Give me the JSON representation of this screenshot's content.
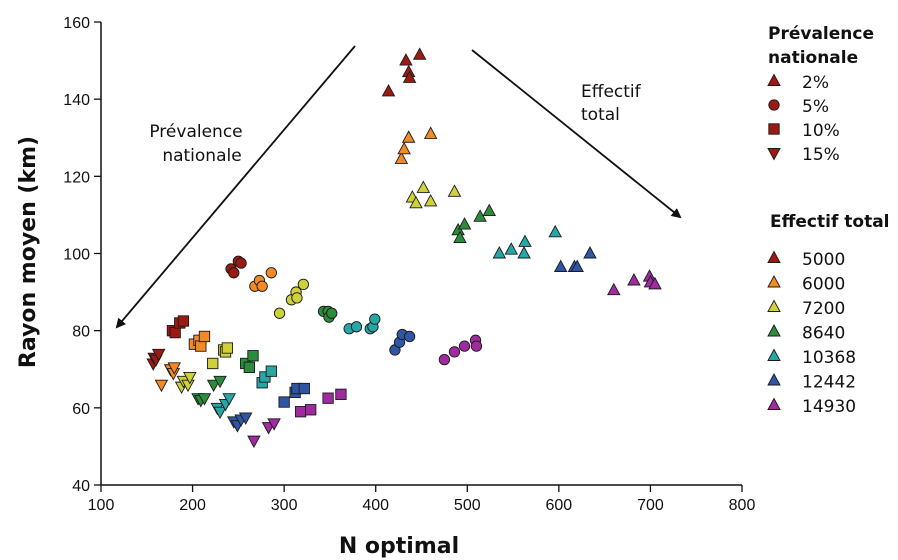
{
  "chart_data": {
    "type": "scatter",
    "xlabel": "N optimal",
    "ylabel": "Rayon moyen (km)",
    "xlim": [
      100,
      800
    ],
    "ylim": [
      40,
      160
    ],
    "xticks": [
      100,
      200,
      300,
      400,
      500,
      600,
      700,
      800
    ],
    "yticks": [
      40,
      60,
      80,
      100,
      120,
      140,
      160
    ],
    "grid": false,
    "annotations": [
      {
        "lines": [
          "Prévalence",
          "nationale"
        ]
      },
      {
        "lines": [
          "Effectif",
          "total"
        ]
      }
    ],
    "legend_prevalence": {
      "title_lines": [
        "Prévalence",
        "nationale"
      ],
      "entries": [
        {
          "label": "2%",
          "marker": "triangle-up"
        },
        {
          "label": "5%",
          "marker": "circle"
        },
        {
          "label": "10%",
          "marker": "square"
        },
        {
          "label": "15%",
          "marker": "triangle-down"
        }
      ]
    },
    "legend_effectif": {
      "title": "Effectif total",
      "entries": [
        {
          "label": "5000",
          "color": "#9b1a12"
        },
        {
          "label": "6000",
          "color": "#f28a26"
        },
        {
          "label": "7200",
          "color": "#cfd13a"
        },
        {
          "label": "8640",
          "color": "#2c8c3b"
        },
        {
          "label": "10368",
          "color": "#27a6a6"
        },
        {
          "label": "12442",
          "color": "#2f56a3"
        },
        {
          "label": "14930",
          "color": "#a02ba0"
        }
      ]
    },
    "series": [
      {
        "prevalence": "2%",
        "effectif": "5000",
        "marker": "triangle-up",
        "color": "#9b1a12",
        "points": [
          [
            414,
            142
          ],
          [
            433,
            150
          ],
          [
            436,
            147
          ],
          [
            437,
            145.5
          ],
          [
            448,
            151.5
          ]
        ]
      },
      {
        "prevalence": "2%",
        "effectif": "6000",
        "marker": "triangle-up",
        "color": "#f28a26",
        "points": [
          [
            428,
            124.5
          ],
          [
            431,
            127
          ],
          [
            436,
            130
          ],
          [
            460,
            131
          ]
        ]
      },
      {
        "prevalence": "2%",
        "effectif": "7200",
        "marker": "triangle-up",
        "color": "#cfd13a",
        "points": [
          [
            440,
            114.5
          ],
          [
            444,
            113
          ],
          [
            452,
            117
          ],
          [
            460,
            113.5
          ],
          [
            486,
            116
          ]
        ]
      },
      {
        "prevalence": "2%",
        "effectif": "8640",
        "marker": "triangle-up",
        "color": "#2c8c3b",
        "points": [
          [
            490,
            106
          ],
          [
            492,
            104
          ],
          [
            497,
            107.5
          ],
          [
            514,
            109.5
          ],
          [
            524,
            111
          ]
        ]
      },
      {
        "prevalence": "2%",
        "effectif": "10368",
        "marker": "triangle-up",
        "color": "#27a6a6",
        "points": [
          [
            535,
            100
          ],
          [
            548,
            101
          ],
          [
            562,
            100
          ],
          [
            563,
            103
          ],
          [
            596,
            105.5
          ]
        ]
      },
      {
        "prevalence": "2%",
        "effectif": "12442",
        "marker": "triangle-up",
        "color": "#2f56a3",
        "points": [
          [
            602,
            96.5
          ],
          [
            617,
            96.5
          ],
          [
            620,
            96.5
          ],
          [
            634,
            100
          ]
        ]
      },
      {
        "prevalence": "2%",
        "effectif": "14930",
        "marker": "triangle-up",
        "color": "#a02ba0",
        "points": [
          [
            660,
            90.5
          ],
          [
            682,
            93
          ],
          [
            699,
            94
          ],
          [
            700,
            92.5
          ],
          [
            705,
            92
          ]
        ]
      },
      {
        "prevalence": "5%",
        "effectif": "5000",
        "marker": "circle",
        "color": "#9b1a12",
        "points": [
          [
            242,
            96
          ],
          [
            245,
            95
          ],
          [
            250,
            98
          ],
          [
            253,
            97.5
          ]
        ]
      },
      {
        "prevalence": "5%",
        "effectif": "6000",
        "marker": "circle",
        "color": "#f28a26",
        "points": [
          [
            268,
            91.5
          ],
          [
            273,
            93
          ],
          [
            276,
            91.5
          ],
          [
            286,
            95
          ]
        ]
      },
      {
        "prevalence": "5%",
        "effectif": "7200",
        "marker": "circle",
        "color": "#cfd13a",
        "points": [
          [
            295,
            84.5
          ],
          [
            308,
            88
          ],
          [
            313,
            90
          ],
          [
            314,
            88.5
          ],
          [
            321,
            92
          ]
        ]
      },
      {
        "prevalence": "5%",
        "effectif": "8640",
        "marker": "circle",
        "color": "#2c8c3b",
        "points": [
          [
            343,
            85
          ],
          [
            348,
            85
          ],
          [
            349,
            83.5
          ],
          [
            352,
            84.5
          ]
        ]
      },
      {
        "prevalence": "5%",
        "effectif": "10368",
        "marker": "circle",
        "color": "#27a6a6",
        "points": [
          [
            371,
            80.5
          ],
          [
            379,
            81
          ],
          [
            394,
            80.5
          ],
          [
            397,
            81
          ],
          [
            399,
            83
          ]
        ]
      },
      {
        "prevalence": "5%",
        "effectif": "12442",
        "marker": "circle",
        "color": "#2f56a3",
        "points": [
          [
            421,
            75
          ],
          [
            426,
            77
          ],
          [
            429,
            79
          ],
          [
            437,
            78.5
          ]
        ]
      },
      {
        "prevalence": "5%",
        "effectif": "14930",
        "marker": "circle",
        "color": "#a02ba0",
        "points": [
          [
            475,
            72.5
          ],
          [
            486,
            74.5
          ],
          [
            497,
            76
          ],
          [
            509,
            77.5
          ],
          [
            510,
            76
          ]
        ]
      },
      {
        "prevalence": "10%",
        "effectif": "5000",
        "marker": "square",
        "color": "#9b1a12",
        "points": [
          [
            178,
            80
          ],
          [
            181,
            79.5
          ],
          [
            186,
            82
          ],
          [
            190,
            82.5
          ]
        ]
      },
      {
        "prevalence": "10%",
        "effectif": "6000",
        "marker": "square",
        "color": "#f28a26",
        "points": [
          [
            202,
            76.5
          ],
          [
            207,
            77.5
          ],
          [
            209,
            76
          ],
          [
            213,
            78.5
          ]
        ]
      },
      {
        "prevalence": "10%",
        "effectif": "7200",
        "marker": "square",
        "color": "#cfd13a",
        "points": [
          [
            222,
            71.5
          ],
          [
            234,
            75
          ],
          [
            236,
            74.5
          ],
          [
            238,
            75.5
          ]
        ]
      },
      {
        "prevalence": "10%",
        "effectif": "8640",
        "marker": "square",
        "color": "#2c8c3b",
        "points": [
          [
            258,
            71.5
          ],
          [
            262,
            70.5
          ],
          [
            266,
            73.5
          ]
        ]
      },
      {
        "prevalence": "10%",
        "effectif": "10368",
        "marker": "square",
        "color": "#27a6a6",
        "points": [
          [
            276,
            66.5
          ],
          [
            279,
            68
          ],
          [
            286,
            69.5
          ]
        ]
      },
      {
        "prevalence": "10%",
        "effectif": "12442",
        "marker": "square",
        "color": "#2f56a3",
        "points": [
          [
            300,
            61.5
          ],
          [
            312,
            64
          ],
          [
            314,
            65
          ],
          [
            322,
            65
          ]
        ]
      },
      {
        "prevalence": "10%",
        "effectif": "14930",
        "marker": "square",
        "color": "#a02ba0",
        "points": [
          [
            318,
            59
          ],
          [
            329,
            59.5
          ],
          [
            348,
            62.5
          ],
          [
            362,
            63.5
          ]
        ]
      },
      {
        "prevalence": "15%",
        "effectif": "5000",
        "marker": "triangle-down",
        "color": "#9b1a12",
        "points": [
          [
            157,
            71.5
          ],
          [
            158,
            73
          ],
          [
            160,
            72.5
          ],
          [
            163,
            74
          ]
        ]
      },
      {
        "prevalence": "15%",
        "effectif": "6000",
        "marker": "triangle-down",
        "color": "#f28a26",
        "points": [
          [
            166,
            66
          ],
          [
            176,
            70
          ],
          [
            179,
            69
          ],
          [
            180,
            70.5
          ]
        ]
      },
      {
        "prevalence": "15%",
        "effectif": "7200",
        "marker": "triangle-down",
        "color": "#cfd13a",
        "points": [
          [
            188,
            65.5
          ],
          [
            190,
            67
          ],
          [
            195,
            66
          ],
          [
            197,
            68
          ]
        ]
      },
      {
        "prevalence": "15%",
        "effectif": "8640",
        "marker": "triangle-down",
        "color": "#2c8c3b",
        "points": [
          [
            206,
            62.5
          ],
          [
            209,
            62
          ],
          [
            213,
            62.5
          ],
          [
            223,
            66
          ],
          [
            230,
            67
          ]
        ]
      },
      {
        "prevalence": "15%",
        "effectif": "10368",
        "marker": "triangle-down",
        "color": "#27a6a6",
        "points": [
          [
            227,
            60
          ],
          [
            230,
            59
          ],
          [
            236,
            61
          ],
          [
            240,
            62.5
          ]
        ]
      },
      {
        "prevalence": "15%",
        "effectif": "12442",
        "marker": "triangle-down",
        "color": "#2f56a3",
        "points": [
          [
            245,
            56.5
          ],
          [
            249,
            55.5
          ],
          [
            253,
            57
          ],
          [
            258,
            57.5
          ]
        ]
      },
      {
        "prevalence": "15%",
        "effectif": "14930",
        "marker": "triangle-down",
        "color": "#a02ba0",
        "points": [
          [
            267,
            51.5
          ],
          [
            283,
            55
          ],
          [
            289,
            56
          ]
        ]
      }
    ]
  }
}
